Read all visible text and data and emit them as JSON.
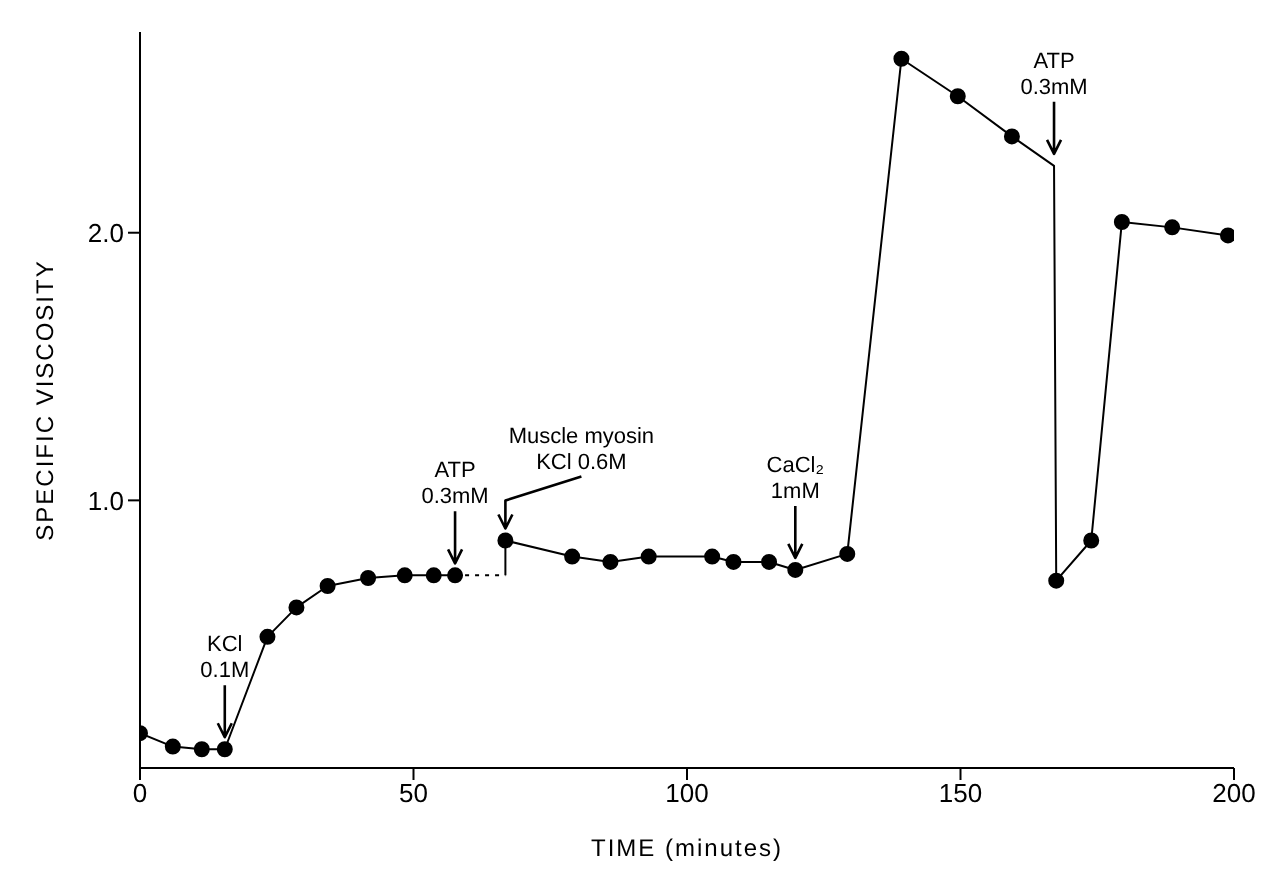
{
  "chart_data": {
    "type": "line",
    "xlabel": "TIME (minutes)",
    "ylabel": "SPECIFIC VISCOSITY",
    "xlim": [
      0,
      200
    ],
    "xticks": [
      0,
      50,
      100,
      150,
      200
    ],
    "ylim": [
      0,
      2.75
    ],
    "yticks": [
      {
        "value": 1,
        "label": "1.0"
      },
      {
        "value": 2,
        "label": "2.0"
      }
    ],
    "series": [
      {
        "color": "#000000",
        "marker": "circle",
        "line_style": "solid",
        "x": [
          0,
          6,
          11.3,
          15.5,
          23.3,
          28.6,
          34.3,
          41.7,
          48.4,
          53.7,
          57.6
        ],
        "values": [
          0.13,
          0.08,
          0.07,
          0.07,
          0.49,
          0.6,
          0.68,
          0.71,
          0.72,
          0.72,
          0.72
        ]
      },
      {
        "color": "#000000",
        "line_style": "dotted",
        "x": [
          57.6,
          66.8
        ],
        "values": [
          0.72,
          0.72
        ]
      },
      {
        "color": "#000000",
        "line_style": "solid",
        "x": [
          66.8,
          66.8
        ],
        "values": [
          0.72,
          0.85
        ]
      },
      {
        "color": "#000000",
        "marker": "circle",
        "line_style": "solid",
        "x": [
          66.8,
          79,
          86,
          93,
          104.6,
          108.5,
          115,
          119.8,
          129.3,
          139.2,
          149.5,
          159.4
        ],
        "values": [
          0.85,
          0.79,
          0.77,
          0.79,
          0.79,
          0.77,
          0.77,
          0.74,
          0.8,
          2.65,
          2.51,
          2.36
        ]
      },
      {
        "color": "#000000",
        "line_style": "solid",
        "x": [
          159.4,
          167.1,
          167.5
        ],
        "values": [
          2.36,
          2.25,
          0.7
        ]
      },
      {
        "color": "#000000",
        "marker": "circle",
        "line_style": "solid",
        "x": [
          167.5,
          173.9,
          179.5,
          188.7,
          198.9
        ],
        "values": [
          0.7,
          0.85,
          2.04,
          2.02,
          1.99
        ]
      }
    ],
    "annotations": [
      {
        "text": "KCl\n0.1M",
        "x": 15.5,
        "y": 0.07
      },
      {
        "text": "ATP\n0.3mM",
        "x": 57.6,
        "y": 0.72
      },
      {
        "text": "Muscle myosin\nKCl 0.6M",
        "x": 66.8,
        "y": 0.85
      },
      {
        "text": "CaCl₂\n1mM",
        "x": 119.8,
        "y": 0.74
      },
      {
        "text": "ATP\n0.3mM",
        "x": 167.1,
        "y": 2.25
      }
    ]
  }
}
